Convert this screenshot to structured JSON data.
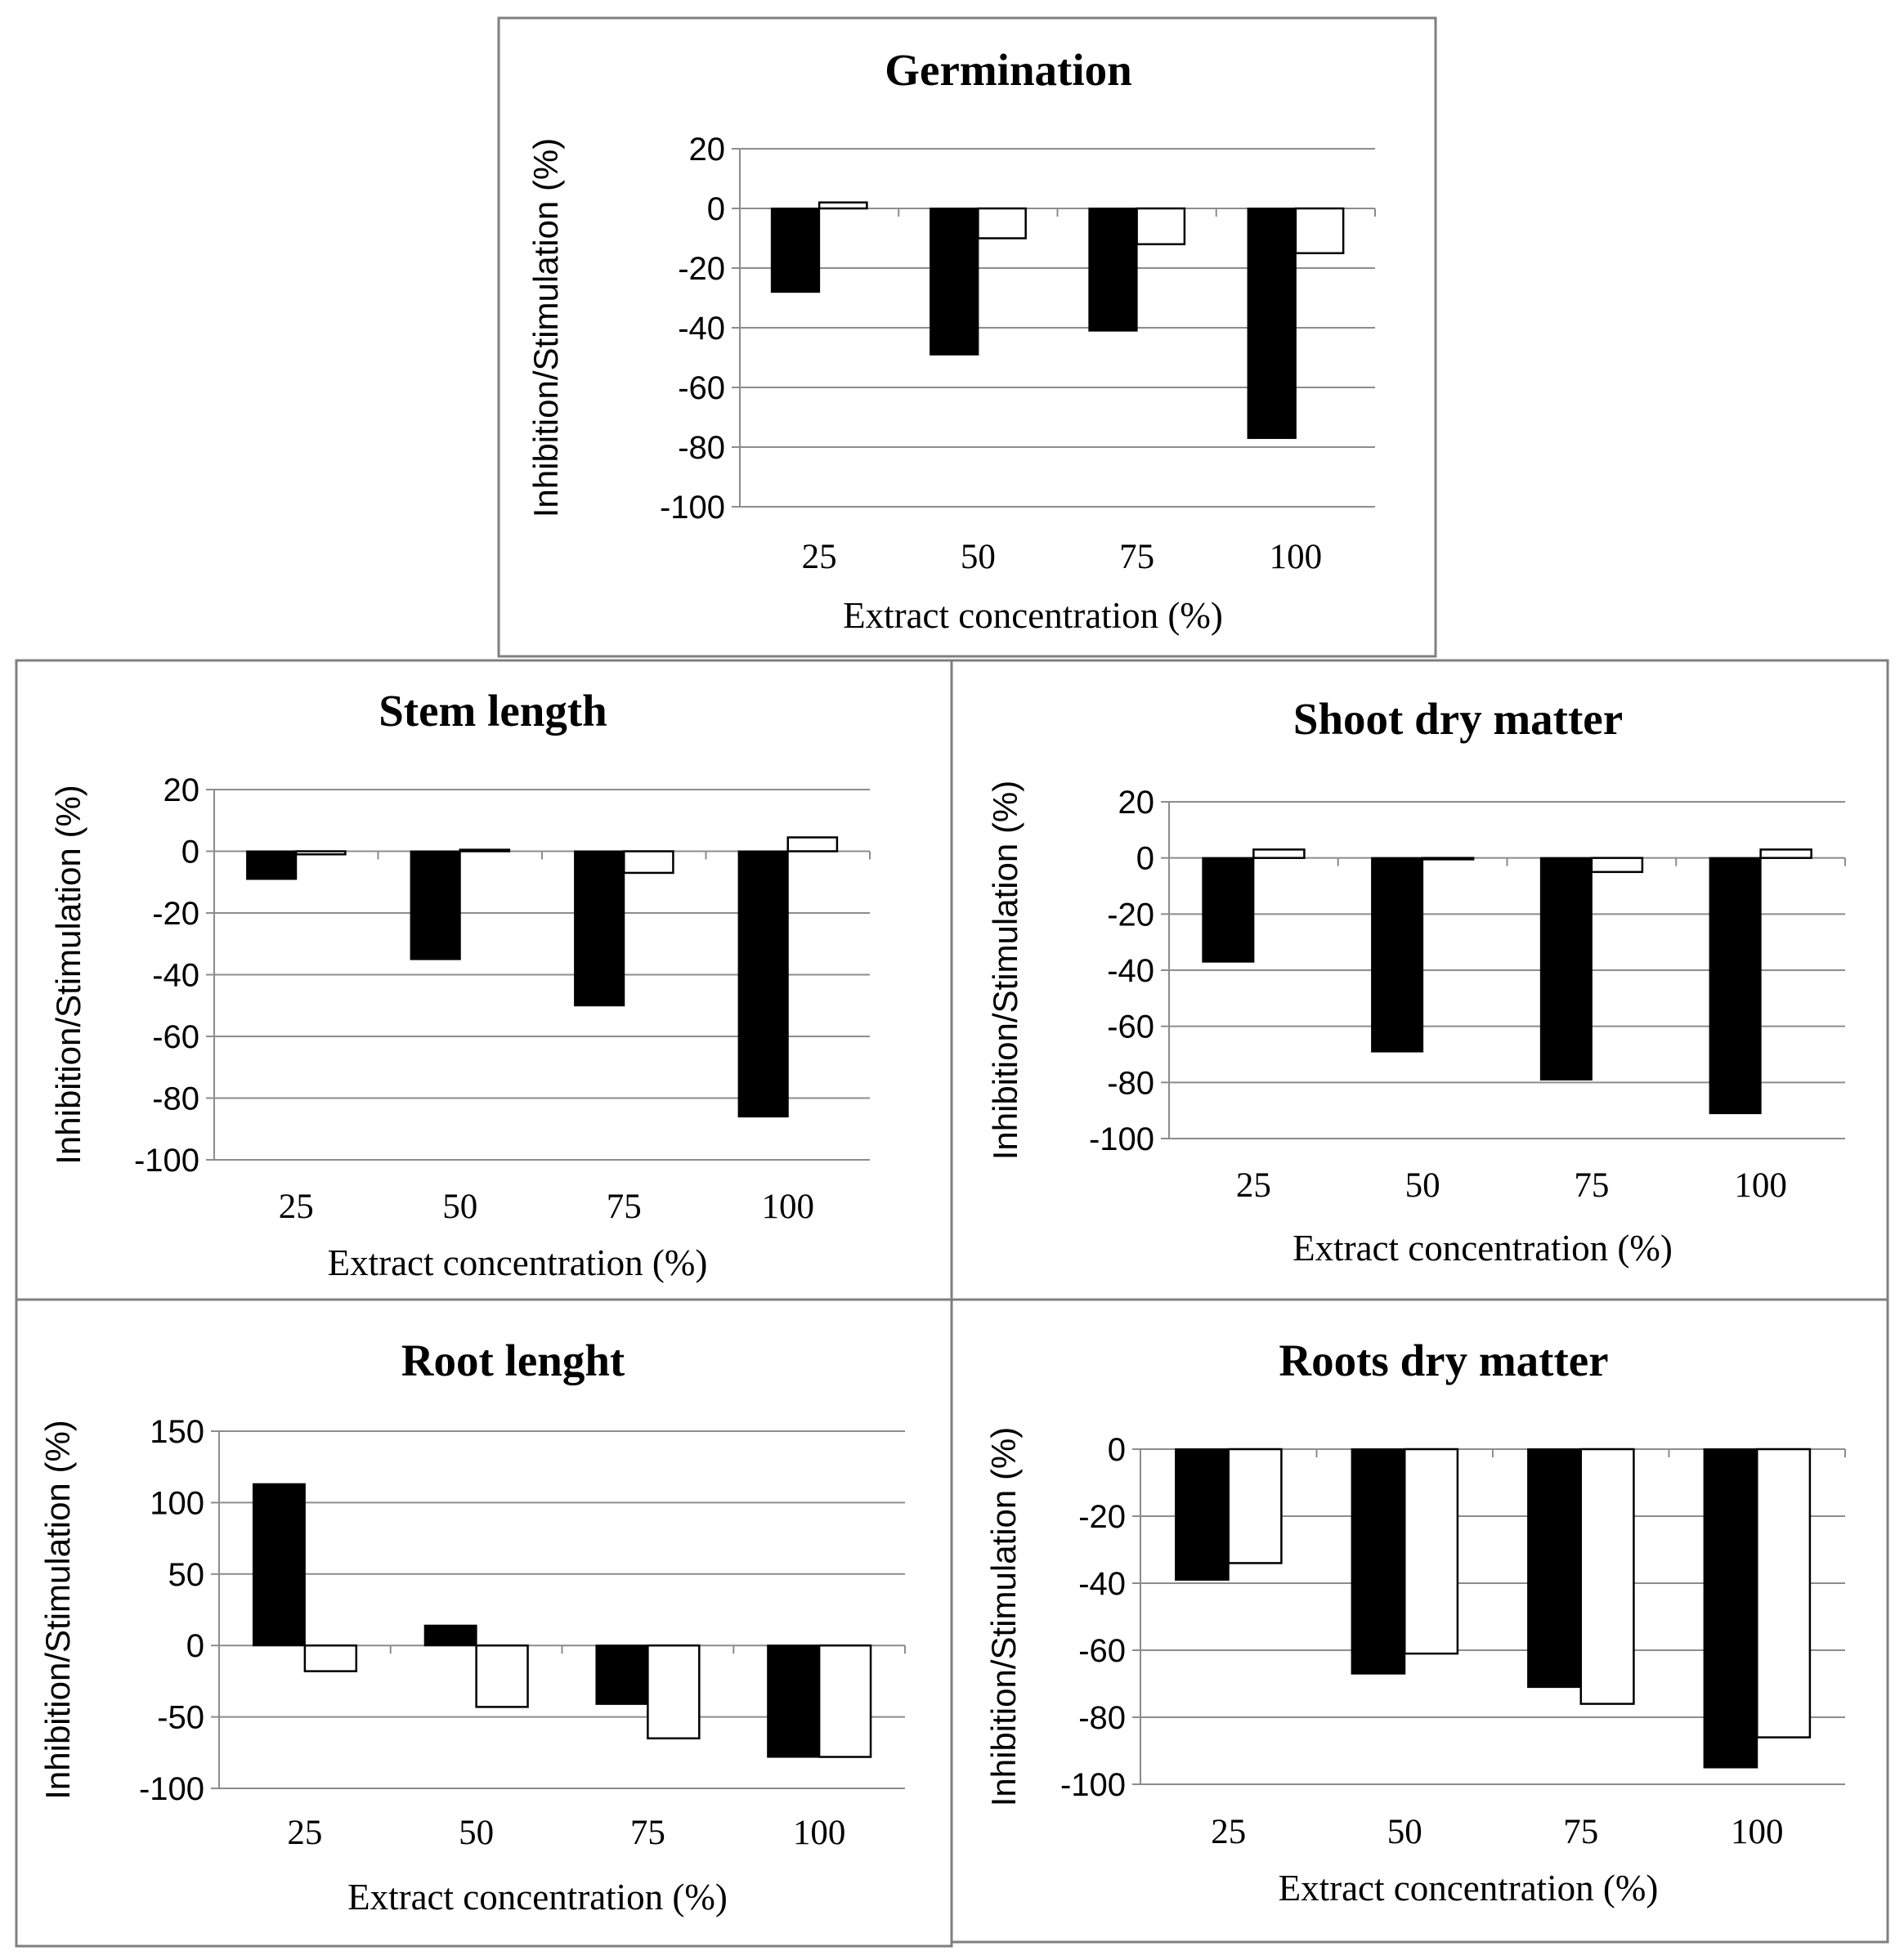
{
  "chart_data": [
    {
      "id": "germination",
      "type": "bar",
      "title": "Germination",
      "xlabel": "Extract concentration (%)",
      "ylabel": "Inhibition/Stimulation (%)",
      "categories": [
        "25",
        "50",
        "75",
        "100"
      ],
      "ylim": [
        -100,
        20
      ],
      "yticks": [
        20,
        0,
        -20,
        -40,
        -60,
        -80,
        -100
      ],
      "grid": true,
      "series": [
        {
          "name": "black",
          "color": "#000000",
          "values": [
            -28,
            -49,
            -41,
            -77
          ]
        },
        {
          "name": "white",
          "color": "#ffffff",
          "values": [
            2,
            -10,
            -12,
            -15
          ]
        }
      ]
    },
    {
      "id": "stem-length",
      "type": "bar",
      "title": "Stem length",
      "xlabel": "Extract concentration (%)",
      "ylabel": "Inhibition/Stimulation (%)",
      "categories": [
        "25",
        "50",
        "75",
        "100"
      ],
      "ylim": [
        -100,
        20
      ],
      "yticks": [
        20,
        0,
        -20,
        -40,
        -60,
        -80,
        -100
      ],
      "grid": true,
      "series": [
        {
          "name": "black",
          "color": "#000000",
          "values": [
            -9,
            -35,
            -50,
            -86
          ]
        },
        {
          "name": "white",
          "color": "#ffffff",
          "values": [
            -1,
            0.5,
            -7,
            4.5
          ]
        }
      ]
    },
    {
      "id": "shoot-dry-matter",
      "type": "bar",
      "title": "Shoot dry matter",
      "xlabel": "Extract concentration (%)",
      "ylabel": "Inhibition/Stimulation (%)",
      "categories": [
        "25",
        "50",
        "75",
        "100"
      ],
      "ylim": [
        -100,
        20
      ],
      "yticks": [
        20,
        0,
        -20,
        -40,
        -60,
        -80,
        -100
      ],
      "grid": true,
      "series": [
        {
          "name": "black",
          "color": "#000000",
          "values": [
            -37,
            -69,
            -79,
            -91
          ]
        },
        {
          "name": "white",
          "color": "#ffffff",
          "values": [
            3,
            -0.5,
            -5,
            3
          ]
        }
      ]
    },
    {
      "id": "root-lenght",
      "type": "bar",
      "title": "Root lenght",
      "xlabel": "Extract concentration (%)",
      "ylabel": "Inhibition/Stimulation (%)",
      "categories": [
        "25",
        "50",
        "75",
        "100"
      ],
      "ylim": [
        -100,
        150
      ],
      "yticks": [
        150,
        100,
        50,
        0,
        -50,
        -100
      ],
      "grid": true,
      "series": [
        {
          "name": "black",
          "color": "#000000",
          "values": [
            113,
            14,
            -41,
            -78
          ]
        },
        {
          "name": "white",
          "color": "#ffffff",
          "values": [
            -18,
            -43,
            -65,
            -78
          ]
        }
      ]
    },
    {
      "id": "roots-dry-matter",
      "type": "bar",
      "title": "Roots dry matter",
      "xlabel": "Extract concentration (%)",
      "ylabel": "Inhibition/Stimulation (%)",
      "categories": [
        "25",
        "50",
        "75",
        "100"
      ],
      "ylim": [
        -100,
        0
      ],
      "yticks": [
        0,
        -20,
        -40,
        -60,
        -80,
        -100
      ],
      "grid": true,
      "series": [
        {
          "name": "black",
          "color": "#000000",
          "values": [
            -39,
            -67,
            -71,
            -95
          ]
        },
        {
          "name": "white",
          "color": "#ffffff",
          "values": [
            -34,
            -61,
            -76,
            -86
          ]
        }
      ]
    }
  ]
}
